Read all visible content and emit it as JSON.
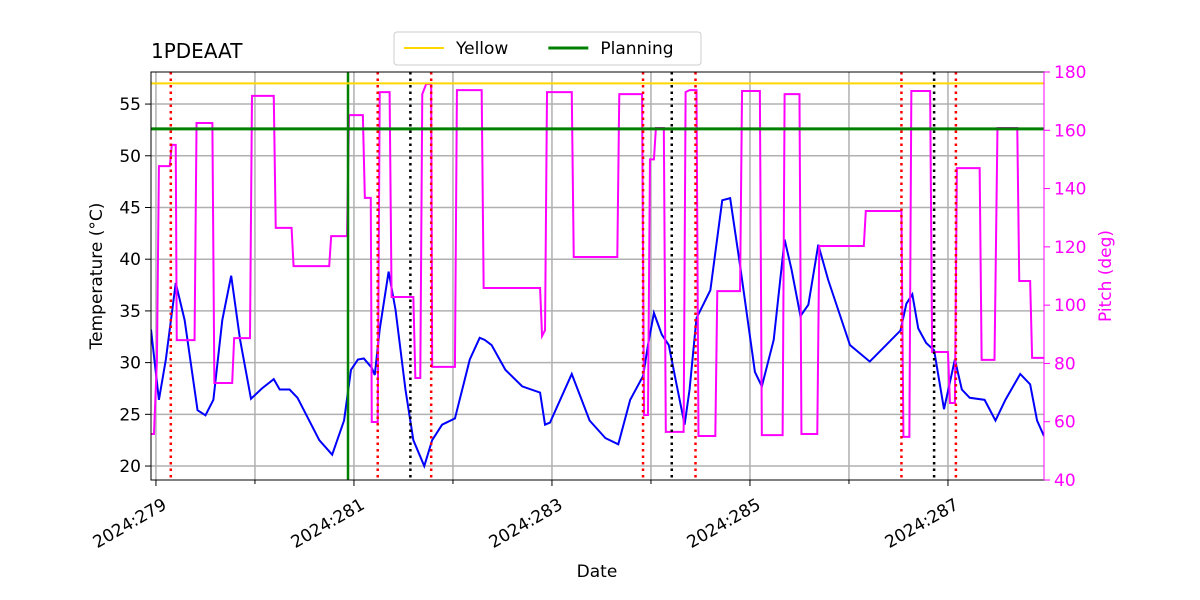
{
  "chart_data": {
    "type": "line",
    "title": "1PDEAAT",
    "xlabel": "Date",
    "ylabel": "Temperature (°C)",
    "y2label": "Pitch (deg)",
    "xlim": [
      278.95,
      287.97
    ],
    "ylim": [
      18.65,
      58.1
    ],
    "y2lim": [
      40,
      180
    ],
    "xticks": [
      {
        "value": 279,
        "label": "2024:279"
      },
      {
        "value": 281,
        "label": "2024:281"
      },
      {
        "value": 283,
        "label": "2024:283"
      },
      {
        "value": 285,
        "label": "2024:285"
      },
      {
        "value": 287,
        "label": "2024:287"
      }
    ],
    "xminorticks": [
      280,
      282,
      284,
      286
    ],
    "yticks": [
      20,
      25,
      30,
      35,
      40,
      45,
      50,
      55
    ],
    "y2ticks": [
      40,
      60,
      80,
      100,
      120,
      140,
      160,
      180
    ],
    "grid": true,
    "legend": "upper center",
    "series": [
      {
        "color": "#0000ff",
        "x": [
          278.95,
          279.03,
          279.1,
          279.2,
          279.29,
          279.42,
          279.5,
          279.58,
          279.67,
          279.76,
          279.85,
          279.96,
          280.07,
          280.19,
          280.25,
          280.35,
          280.43,
          280.65,
          280.78,
          280.9,
          280.97,
          281.04,
          281.1,
          281.18,
          281.21,
          281.26,
          281.35,
          281.42,
          281.52,
          281.6,
          281.71,
          281.79,
          281.89,
          282.02,
          282.17,
          282.27,
          282.32,
          282.39,
          282.53,
          282.7,
          282.88,
          282.93,
          282.98,
          283.2,
          283.38,
          283.54,
          283.67,
          283.79,
          283.92,
          283.97,
          284.03,
          284.11,
          284.18,
          284.25,
          284.34,
          284.39,
          284.46,
          284.6,
          284.72,
          284.8,
          284.9,
          285.05,
          285.12,
          285.24,
          285.35,
          285.42,
          285.51,
          285.59,
          285.69,
          285.79,
          286.01,
          286.21,
          286.52,
          286.58,
          286.64,
          286.7,
          286.78,
          286.86,
          286.96,
          287.07,
          287.14,
          287.22,
          287.37,
          287.48,
          287.58,
          287.73,
          287.83,
          287.9,
          287.97
        ],
        "values": [
          33.2,
          26.4,
          30.3,
          37.7,
          34.1,
          25.4,
          24.9,
          26.4,
          34.1,
          38.4,
          32.2,
          26.5,
          27.5,
          28.4,
          27.4,
          27.4,
          26.6,
          22.5,
          21.1,
          24.4,
          29.3,
          30.3,
          30.4,
          29.5,
          28.8,
          33.2,
          38.8,
          35.1,
          27.4,
          22.5,
          20.0,
          22.5,
          24.0,
          24.6,
          30.3,
          32.4,
          32.2,
          31.7,
          29.3,
          27.7,
          27.1,
          24.0,
          24.2,
          28.9,
          24.4,
          22.7,
          22.1,
          26.4,
          28.7,
          31.7,
          34.8,
          32.7,
          31.7,
          28.3,
          24.0,
          27.4,
          34.3,
          37.0,
          45.7,
          45.9,
          39.4,
          29.1,
          27.7,
          32.2,
          41.9,
          39.0,
          34.5,
          35.6,
          41.4,
          38.0,
          31.7,
          30.1,
          33.1,
          35.7,
          36.6,
          33.3,
          31.9,
          31.2,
          25.5,
          30.3,
          27.4,
          26.6,
          26.4,
          24.4,
          26.4,
          28.9,
          27.9,
          24.4,
          22.9
        ]
      },
      {
        "color": "#ff00ff",
        "axis": "y2",
        "x": [
          278.95,
          278.98,
          279.01,
          279.03,
          279.14,
          279.16,
          279.2,
          279.21,
          279.39,
          279.41,
          279.57,
          279.59,
          279.77,
          279.79,
          279.95,
          279.97,
          280.19,
          280.21,
          280.37,
          280.39,
          280.75,
          280.77,
          280.93,
          280.95,
          281.09,
          281.11,
          281.17,
          281.18,
          281.24,
          281.26,
          281.36,
          281.38,
          281.6,
          281.62,
          281.67,
          281.69,
          281.73,
          281.78,
          281.79,
          282.02,
          282.04,
          282.29,
          282.31,
          282.88,
          282.9,
          282.93,
          282.95,
          283.2,
          283.22,
          283.66,
          283.68,
          283.91,
          283.93,
          283.97,
          283.99,
          284.03,
          284.05,
          284.13,
          284.15,
          284.33,
          284.35,
          284.39,
          284.46,
          284.48,
          284.65,
          284.67,
          284.9,
          284.92,
          285.1,
          285.12,
          285.33,
          285.35,
          285.5,
          285.52,
          285.68,
          285.7,
          286.15,
          286.17,
          286.53,
          286.55,
          286.61,
          286.63,
          286.82,
          286.84,
          287.0,
          287.02,
          287.07,
          287.09,
          287.32,
          287.34,
          287.47,
          287.5,
          287.7,
          287.72,
          287.83,
          287.85,
          287.97
        ],
        "values": [
          55.8,
          55.8,
          81.2,
          147.7,
          147.7,
          155,
          155,
          88,
          88,
          162.5,
          162.5,
          73.3,
          73.3,
          88.7,
          88.7,
          171.8,
          171.8,
          126.5,
          126.5,
          113.4,
          113.4,
          123.7,
          123.7,
          165.2,
          165.2,
          136.8,
          136.8,
          59.9,
          59.9,
          173.1,
          173.1,
          102.8,
          102.8,
          75,
          75,
          172.4,
          175.9,
          175.9,
          78.8,
          78.8,
          173.8,
          173.8,
          105.9,
          105.9,
          89.4,
          91.4,
          173.1,
          173.1,
          116.5,
          116.5,
          172.4,
          172.4,
          62.3,
          62.3,
          150,
          150,
          160.8,
          160.8,
          56.5,
          56.5,
          173.1,
          173.8,
          173.8,
          55.1,
          55.1,
          104.8,
          104.8,
          173.5,
          173.5,
          55.4,
          55.4,
          172.4,
          172.4,
          55.8,
          55.8,
          120.3,
          120.3,
          132.3,
          132.3,
          54.8,
          54.8,
          173.5,
          173.5,
          83.9,
          83.9,
          66.4,
          66.4,
          147,
          147,
          81.2,
          81.2,
          160.8,
          160.8,
          108.3,
          108.3,
          81.9,
          81.9
        ]
      }
    ],
    "hlines": [
      {
        "name": "Yellow",
        "value": 57,
        "color": "#ffd700",
        "width": 2
      },
      {
        "name": "Planning",
        "value": 52.6,
        "color": "#008000",
        "width": 3
      }
    ],
    "vlines": [
      {
        "value": 280.94,
        "color": "#008000",
        "dashed": false
      },
      {
        "value": 279.15,
        "color": "#ff0000",
        "dashed": true
      },
      {
        "value": 281.24,
        "color": "#ff0000",
        "dashed": true
      },
      {
        "value": 281.78,
        "color": "#ff0000",
        "dashed": true
      },
      {
        "value": 283.92,
        "color": "#ff0000",
        "dashed": true
      },
      {
        "value": 284.45,
        "color": "#ff0000",
        "dashed": true
      },
      {
        "value": 286.53,
        "color": "#ff0000",
        "dashed": true
      },
      {
        "value": 287.08,
        "color": "#ff0000",
        "dashed": true
      },
      {
        "value": 281.57,
        "color": "#000000",
        "dashed": true
      },
      {
        "value": 284.21,
        "color": "#000000",
        "dashed": true
      },
      {
        "value": 286.86,
        "color": "#000000",
        "dashed": true
      }
    ]
  }
}
